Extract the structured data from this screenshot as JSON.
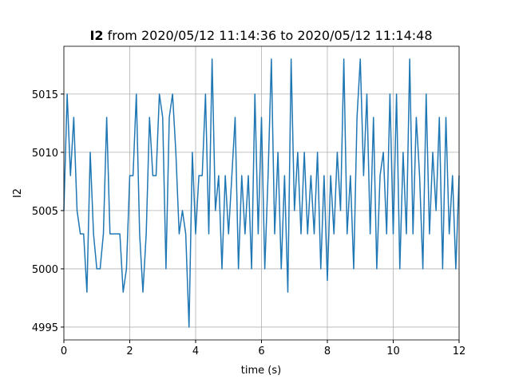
{
  "chart_data": {
    "type": "line",
    "title": [
      "I2",
      "from 2020/05/12 11:14:36 to 2020/05/12 11:14:48"
    ],
    "xlabel": "time (s)",
    "ylabel": "I2",
    "xlim": [
      0,
      12
    ],
    "ylim": [
      4993.9,
      5019.1
    ],
    "xticks": [
      0,
      2,
      4,
      6,
      8,
      10,
      12
    ],
    "yticks": [
      4995,
      5000,
      5005,
      5010,
      5015
    ],
    "grid": true,
    "series": [
      {
        "name": "I2",
        "color": "#1f77b4",
        "x": [
          0,
          0.1,
          0.2,
          0.3,
          0.4,
          0.5,
          0.6,
          0.7,
          0.8,
          0.9,
          1,
          1.1,
          1.2,
          1.3,
          1.4,
          1.5,
          1.6,
          1.7,
          1.8,
          1.9,
          2,
          2.1,
          2.2,
          2.3,
          2.4,
          2.5,
          2.6,
          2.7,
          2.8,
          2.9,
          3,
          3.1,
          3.2,
          3.3,
          3.4,
          3.5,
          3.6,
          3.7,
          3.8,
          3.9,
          4,
          4.1,
          4.2,
          4.3,
          4.4,
          4.5,
          4.6,
          4.7,
          4.8,
          4.9,
          5,
          5.1,
          5.2,
          5.3,
          5.4,
          5.5,
          5.6,
          5.7,
          5.8,
          5.9,
          6,
          6.1,
          6.2,
          6.3,
          6.4,
          6.5,
          6.6,
          6.7,
          6.8,
          6.9,
          7,
          7.1,
          7.2,
          7.3,
          7.4,
          7.5,
          7.6,
          7.7,
          7.8,
          7.9,
          8,
          8.1,
          8.2,
          8.3,
          8.4,
          8.5,
          8.6,
          8.7,
          8.8,
          8.9,
          9,
          9.1,
          9.2,
          9.3,
          9.4,
          9.5,
          9.6,
          9.7,
          9.8,
          9.9,
          10,
          10.1,
          10.2,
          10.3,
          10.4,
          10.5,
          10.6,
          10.7,
          10.8,
          10.9,
          11,
          11.1,
          11.2,
          11.3,
          11.4,
          11.5,
          11.6,
          11.7,
          11.8,
          11.9,
          12
        ],
        "values": [
          5005,
          5015,
          5008,
          5013,
          5005,
          5003,
          5003,
          4998,
          5010,
          5003,
          5000,
          5000,
          5003,
          5013,
          5003,
          5003,
          5003,
          5003,
          4998,
          5000,
          5008,
          5008,
          5015,
          5003,
          4998,
          5003,
          5013,
          5008,
          5008,
          5015,
          5013,
          5000,
          5013,
          5015,
          5010,
          5003,
          5005,
          5003,
          4995,
          5010,
          5003,
          5008,
          5008,
          5015,
          5003,
          5018,
          5005,
          5008,
          5000,
          5008,
          5003,
          5008,
          5013,
          5000,
          5008,
          5003,
          5008,
          5000,
          5015,
          5003,
          5013,
          5000,
          5008,
          5018,
          5003,
          5010,
          5000,
          5008,
          4998,
          5018,
          5005,
          5010,
          5003,
          5010,
          5003,
          5008,
          5003,
          5010,
          5000,
          5008,
          4999,
          5008,
          5003,
          5010,
          5005,
          5018,
          5003,
          5008,
          5000,
          5013,
          5018,
          5008,
          5015,
          5003,
          5013,
          5000,
          5008,
          5010,
          5003,
          5015,
          5003,
          5015,
          5000,
          5010,
          5003,
          5018,
          5003,
          5013,
          5008,
          5000,
          5015,
          5003,
          5010,
          5005,
          5013,
          5000,
          5013,
          5003,
          5008,
          5000,
          5008
        ]
      }
    ]
  }
}
